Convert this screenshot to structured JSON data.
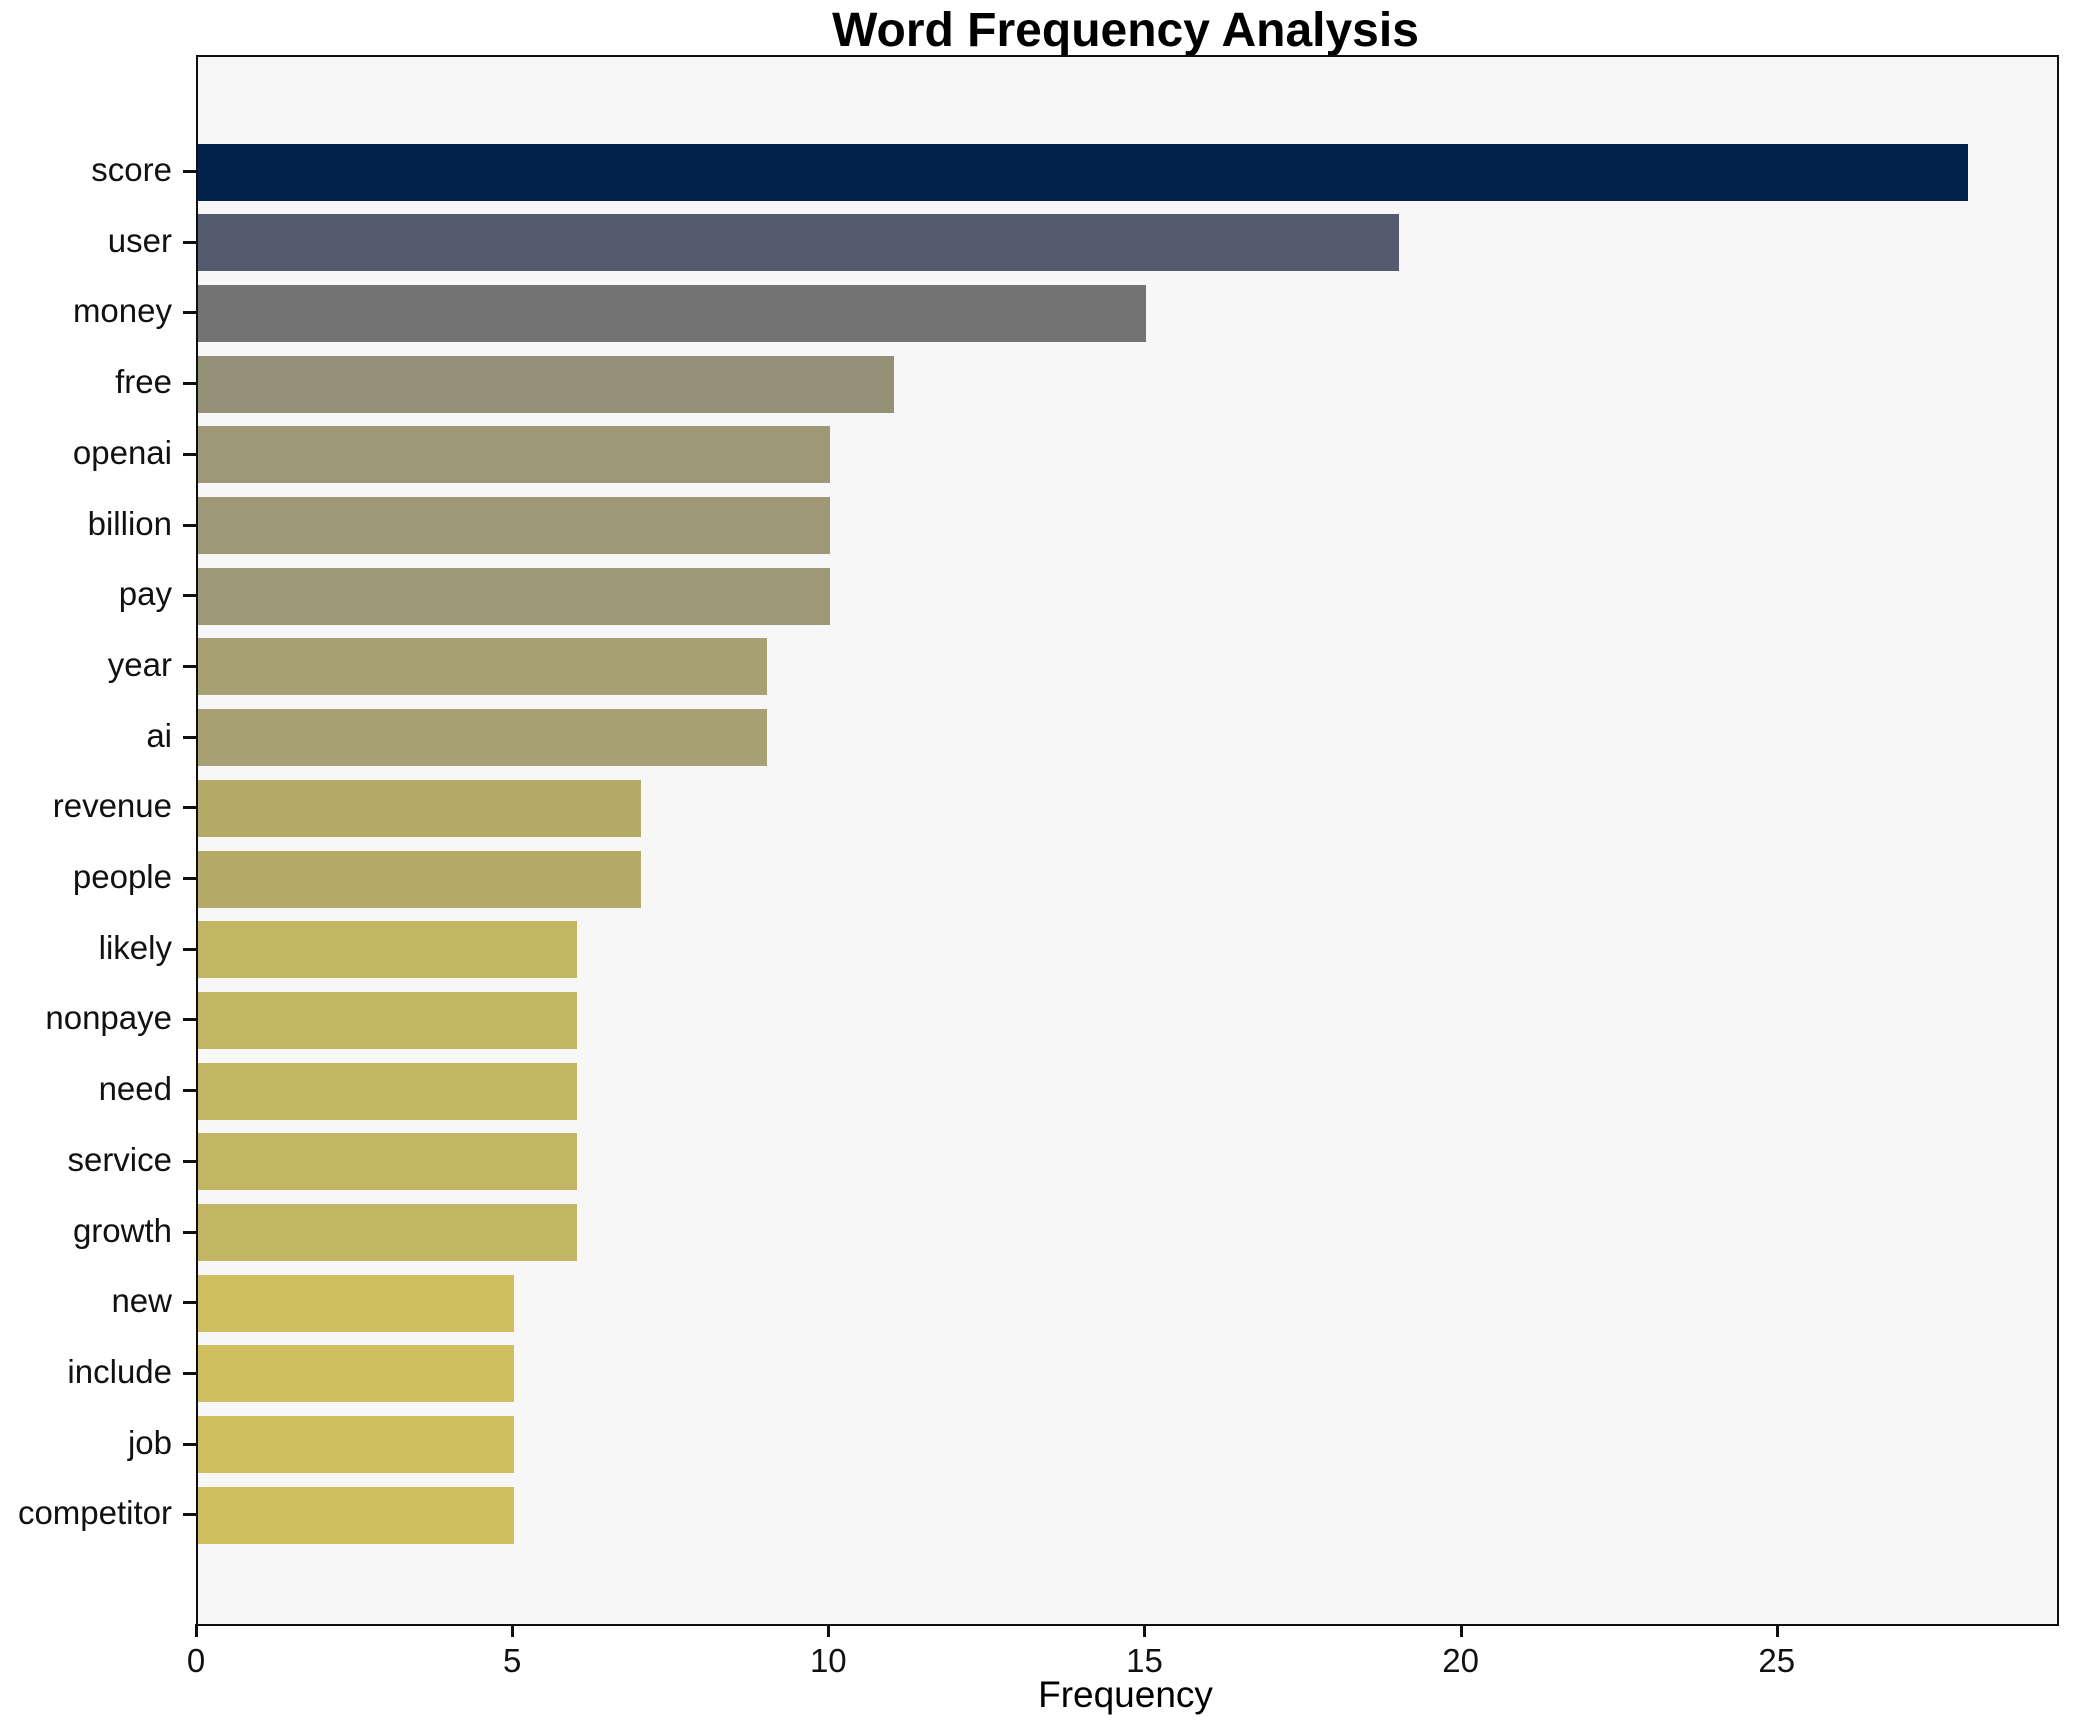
{
  "title": "Word Frequency Analysis",
  "chart_data": {
    "type": "bar",
    "orientation": "horizontal",
    "title": "Word Frequency Analysis",
    "xlabel": "Frequency",
    "ylabel": "",
    "xlim": [
      0,
      29.4
    ],
    "xticks": [
      0,
      5,
      10,
      15,
      20,
      25
    ],
    "grid": false,
    "legend": "none",
    "plot_bg": "#f7f7f7",
    "figure_bg": "#ffffff",
    "categories": [
      "score",
      "user",
      "money",
      "free",
      "openai",
      "billion",
      "pay",
      "year",
      "ai",
      "revenue",
      "people",
      "likely",
      "nonpaye",
      "need",
      "service",
      "growth",
      "new",
      "include",
      "job",
      "competitor"
    ],
    "values": [
      28,
      19,
      15,
      11,
      10,
      10,
      10,
      9,
      9,
      7,
      7,
      6,
      6,
      6,
      6,
      6,
      5,
      5,
      5,
      5
    ],
    "bar_colors": [
      "#02224e",
      "#555b6e",
      "#737373",
      "#948f77",
      "#9e9877",
      "#9e9877",
      "#9e9877",
      "#a6a072",
      "#a6a072",
      "#b5ab68",
      "#b5ab68",
      "#c2b664",
      "#c2b664",
      "#c2b664",
      "#c2b664",
      "#c2b664",
      "#cfbf60",
      "#cfbf60",
      "#cfbf60",
      "#cfbf60"
    ]
  }
}
